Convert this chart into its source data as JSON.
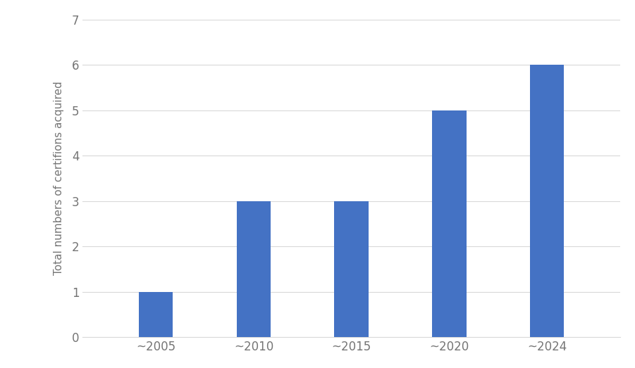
{
  "categories": [
    "~2005",
    "~2010",
    "~2015",
    "~2020",
    "~2024"
  ],
  "values": [
    1,
    3,
    3,
    5,
    6
  ],
  "bar_color": "#4472C4",
  "ylabel": "Total numbers of certifions acquired",
  "ylim": [
    0,
    7
  ],
  "yticks": [
    0,
    1,
    2,
    3,
    4,
    5,
    6,
    7
  ],
  "background_color": "#ffffff",
  "grid_color": "#d9d9d9",
  "bar_width": 0.35,
  "tick_fontsize": 12,
  "ylabel_fontsize": 11,
  "tick_color": "#757575"
}
